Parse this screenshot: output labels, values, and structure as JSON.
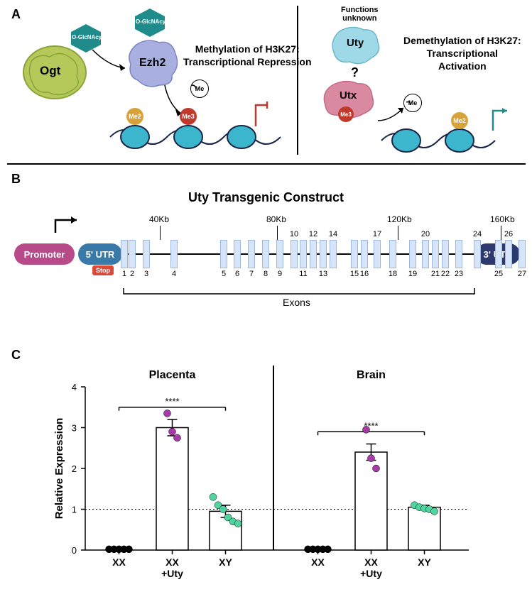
{
  "panelA": {
    "label": "A",
    "ogt": {
      "text": "Ogt",
      "fill": "#b4c95a",
      "stroke": "#8aa33a"
    },
    "glcnac_label": "O-GlcNAcyl",
    "glcnac_color": "#1f8b8b",
    "ezh2": {
      "text": "Ezh2",
      "fill": "#a9b0e0",
      "stroke": "#7a85c9"
    },
    "me_label": "Me",
    "me2_label": "Me2",
    "me3_label": "Me3",
    "me2_color": "#d8a23a",
    "me3_color": "#c0392b",
    "left_title1": "Methylation of H3K27:",
    "left_title2": "Transcriptional Repression",
    "uty": {
      "text": "Uty",
      "fill": "#9fd8e6",
      "stroke": "#6ab8cc"
    },
    "utx": {
      "text": "Utx",
      "fill": "#d98aa0",
      "stroke": "#c46b86"
    },
    "functions_unknown": "Functions",
    "functions_unknown2": "unknown",
    "question": "?",
    "right_title1": "Demethylation of H3K27:",
    "right_title2": "Transcriptional",
    "right_title3": "Activation",
    "nucleosome_fill": "#3bb6cc",
    "nucleosome_stroke": "#1a2547"
  },
  "panelB": {
    "label": "B",
    "title": "Uty Transgenic Construct",
    "promoter": {
      "text": "Promoter",
      "fill": "#b84a8a"
    },
    "utr5": {
      "text": "5' UTR",
      "fill": "#3a7aa8"
    },
    "utr3": {
      "text": "3' UTR",
      "fill": "#2e3a6e"
    },
    "stop": {
      "text": "Stop",
      "fill": "#d94a3a"
    },
    "exons_label": "Exons",
    "kb_ticks": [
      "40Kb",
      "80Kb",
      "120Kb",
      "160Kb"
    ],
    "exon_count": 27,
    "exon_labels": [
      "1",
      "2",
      "3",
      "4",
      "5",
      "6",
      "7",
      "8",
      "9",
      "10",
      "11",
      "12",
      "13",
      "14",
      "15",
      "16",
      "17",
      "18",
      "19",
      "20",
      "21",
      "22",
      "23",
      "24",
      "25",
      "26",
      "27"
    ],
    "exon_positions": [
      174,
      185,
      205,
      244,
      314,
      333,
      353,
      373,
      393,
      413,
      426,
      440,
      454,
      468,
      498,
      512,
      530,
      552,
      580,
      598,
      612,
      626,
      645,
      671,
      701,
      715,
      734
    ],
    "kb_tick_positions": [
      225,
      390,
      560,
      705
    ]
  },
  "panelC": {
    "label": "C",
    "ylabel": "Relative Expression",
    "y_ticks": [
      0,
      1,
      2,
      3,
      4
    ],
    "y_max": 4,
    "dotted_at": 1,
    "sig": "****",
    "placenta": {
      "title": "Placenta",
      "groups": [
        "XX",
        "XX\n+Uty",
        "XY"
      ],
      "bars": [
        {
          "mean": 0.0,
          "err": 0.0,
          "points": [
            0.02,
            0.02,
            0.02,
            0.02,
            0.02
          ],
          "color": "#000000"
        },
        {
          "mean": 3.0,
          "err": 0.2,
          "points": [
            3.35,
            2.9,
            2.75
          ],
          "color": "#a93aa9"
        },
        {
          "mean": 0.95,
          "err": 0.15,
          "points": [
            1.3,
            1.1,
            1.0,
            0.8,
            0.7,
            0.65
          ],
          "color": "#4fd6a0"
        }
      ]
    },
    "brain": {
      "title": "Brain",
      "groups": [
        "XX",
        "XX\n+Uty",
        "XY"
      ],
      "bars": [
        {
          "mean": 0.0,
          "err": 0.0,
          "points": [
            0.02,
            0.02,
            0.02,
            0.02,
            0.02
          ],
          "color": "#000000"
        },
        {
          "mean": 2.4,
          "err": 0.2,
          "points": [
            2.95,
            2.25,
            2.0
          ],
          "color": "#a93aa9"
        },
        {
          "mean": 1.05,
          "err": 0.05,
          "points": [
            1.1,
            1.05,
            1.02,
            1.0,
            0.95
          ],
          "color": "#4fd6a0"
        }
      ]
    }
  }
}
